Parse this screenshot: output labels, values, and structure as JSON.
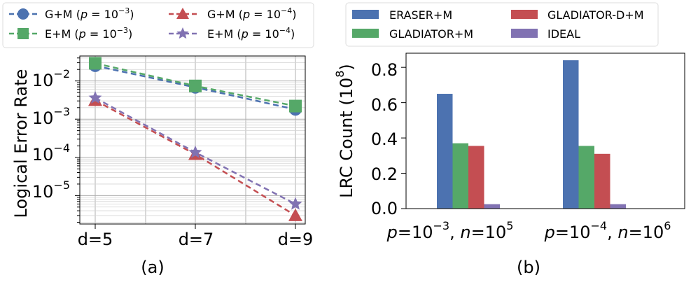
{
  "chart_data": [
    {
      "type": "line",
      "panel_label": "(a)",
      "ylabel": "Logical Error Rate",
      "yscale": "log",
      "ylim": [
        1.8e-06,
        0.045
      ],
      "categories": [
        "d=5",
        "d=7",
        "d=9"
      ],
      "ytick_labels": [
        {
          "value": 0.01,
          "base": "10",
          "exp": "−2"
        },
        {
          "value": 0.001,
          "base": "10",
          "exp": "−3"
        },
        {
          "value": 0.0001,
          "base": "10",
          "exp": "−4"
        },
        {
          "value": 1e-05,
          "base": "10",
          "exp": "−5"
        }
      ],
      "grid": true,
      "series": [
        {
          "name": "G+M",
          "p_exp": "−3",
          "color": "#4c72b0",
          "marker": "circle",
          "values": [
            0.025,
            0.0068,
            0.0018
          ]
        },
        {
          "name": "E+M",
          "p_exp": "−3",
          "color": "#55a868",
          "marker": "square",
          "values": [
            0.029,
            0.0074,
            0.0022
          ]
        },
        {
          "name": "G+M",
          "p_exp": "−4",
          "color": "#c44e52",
          "marker": "triangle",
          "values": [
            0.0031,
            0.00012,
            3e-06
          ]
        },
        {
          "name": "E+M",
          "p_exp": "−4",
          "color": "#8172b2",
          "marker": "star",
          "values": [
            0.0036,
            0.000135,
            6e-06
          ]
        }
      ]
    },
    {
      "type": "bar",
      "panel_label": "(b)",
      "ylabel": "LRC Count",
      "ylabel_unit": {
        "base": "10",
        "exp": "8"
      },
      "ylim": [
        0,
        0.88
      ],
      "yticks": [
        "0.0",
        "0.2",
        "0.4",
        "0.6",
        "0.8"
      ],
      "categories": [
        {
          "p_exp": "−3",
          "n_exp": "5"
        },
        {
          "p_exp": "−4",
          "n_exp": "6"
        }
      ],
      "series": [
        {
          "name": "ERASER+M",
          "color": "#4c72b0",
          "values": [
            0.65,
            0.84
          ]
        },
        {
          "name": "GLADIATOR+M",
          "color": "#55a868",
          "values": [
            0.37,
            0.355
          ]
        },
        {
          "name": "GLADIATOR-D+M",
          "color": "#c44e52",
          "values": [
            0.355,
            0.31
          ]
        },
        {
          "name": "IDEAL",
          "color": "#8172b2",
          "values": [
            0.025,
            0.025
          ]
        }
      ]
    }
  ]
}
